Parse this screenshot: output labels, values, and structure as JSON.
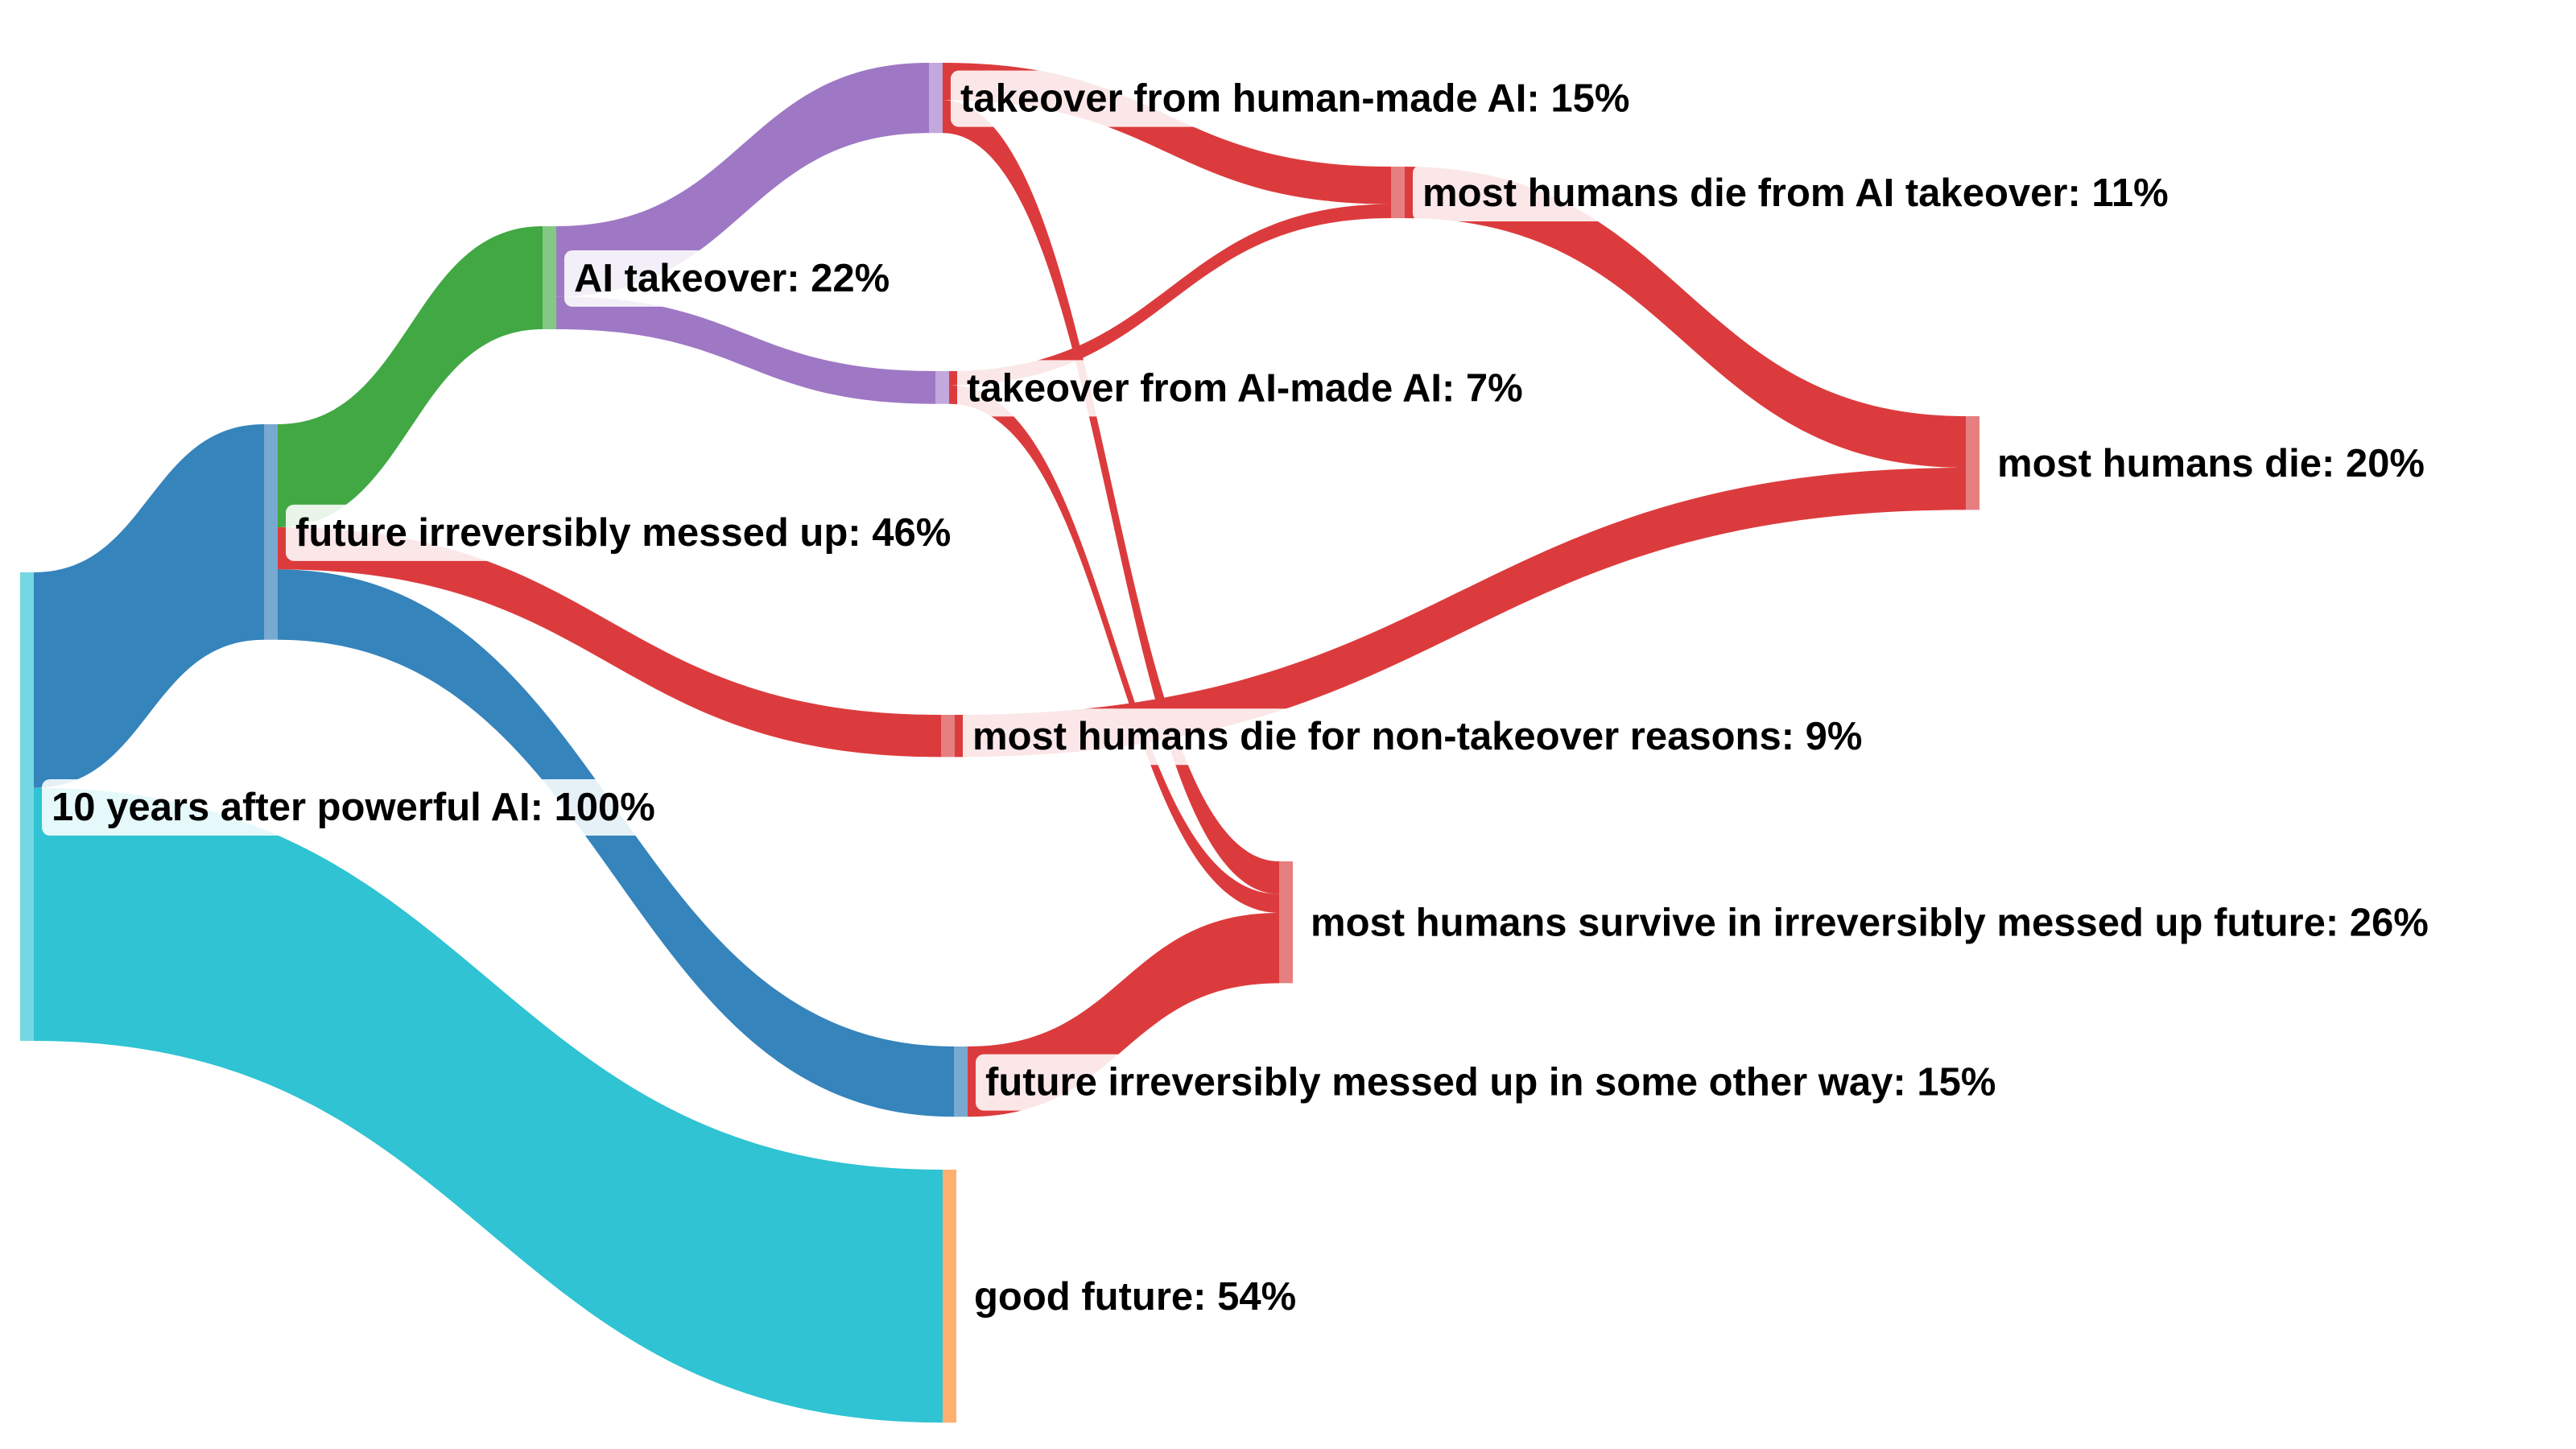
{
  "chart_data": {
    "type": "sankey",
    "title": "",
    "nodes": [
      {
        "id": 0,
        "name": "10 years after powerful AI",
        "value": 100,
        "label": "10 years after powerful AI: 100%",
        "color": "#2fc3d3",
        "node_color": "#74d8e2"
      },
      {
        "id": 1,
        "name": "future irreversibly messed up",
        "value": 46,
        "label": "future irreversibly messed up: 46%",
        "color": "#3584bb",
        "node_color": "#78a9d1"
      },
      {
        "id": 2,
        "name": "good future",
        "value": 54,
        "label": "good future: 54%",
        "color": "#2fc3d3",
        "node_color": "#ffb06e"
      },
      {
        "id": 3,
        "name": "AI takeover",
        "value": 22,
        "label": "AI takeover: 22%",
        "color": "#41a843",
        "node_color": "#83c985"
      },
      {
        "id": 4,
        "name": "most humans die for non-takeover reasons",
        "value": 9,
        "label": "most humans die for non-takeover reasons: 9%",
        "color": "#dc3b3d",
        "node_color": "#e57f80"
      },
      {
        "id": 5,
        "name": "future irreversibly messed up in some other way",
        "value": 15,
        "label": "future irreversibly messed up in some other way: 15%",
        "color": "#3584bb",
        "node_color": "#78a9d1"
      },
      {
        "id": 6,
        "name": "takeover from human-made AI",
        "value": 15,
        "label": "takeover from human-made AI: 15%",
        "color": "#9e78c4",
        "node_color": "#c2a8dc"
      },
      {
        "id": 7,
        "name": "takeover from AI-made AI",
        "value": 7,
        "label": "takeover from AI-made AI: 7%",
        "color": "#9e78c4",
        "node_color": "#c2a8dc"
      },
      {
        "id": 8,
        "name": "most humans die from AI takeover",
        "value": 11,
        "label": "most humans die from AI takeover: 11%",
        "color": "#dc3b3d",
        "node_color": "#e57f80"
      },
      {
        "id": 9,
        "name": "most humans survive in irreversibly messed up future",
        "value": 26,
        "label": "most humans survive in irreversibly messed up future: 26%",
        "color": "#dc3b3d",
        "node_color": "#e57f80"
      },
      {
        "id": 10,
        "name": "most humans die",
        "value": 20,
        "label": "most humans die: 20%",
        "color": "#dc3b3d",
        "node_color": "#e57f80"
      }
    ],
    "links": [
      {
        "source": 0,
        "target": 1,
        "value": 46
      },
      {
        "source": 0,
        "target": 2,
        "value": 54
      },
      {
        "source": 1,
        "target": 3,
        "value": 22
      },
      {
        "source": 1,
        "target": 4,
        "value": 9
      },
      {
        "source": 1,
        "target": 5,
        "value": 15
      },
      {
        "source": 3,
        "target": 6,
        "value": 15
      },
      {
        "source": 3,
        "target": 7,
        "value": 7
      },
      {
        "source": 6,
        "target": 8,
        "value": 8
      },
      {
        "source": 6,
        "target": 9,
        "value": 7
      },
      {
        "source": 7,
        "target": 8,
        "value": 3
      },
      {
        "source": 7,
        "target": 9,
        "value": 4
      },
      {
        "source": 8,
        "target": 10,
        "value": 11
      },
      {
        "source": 4,
        "target": 10,
        "value": 9
      },
      {
        "source": 5,
        "target": 9,
        "value": 15
      }
    ]
  }
}
